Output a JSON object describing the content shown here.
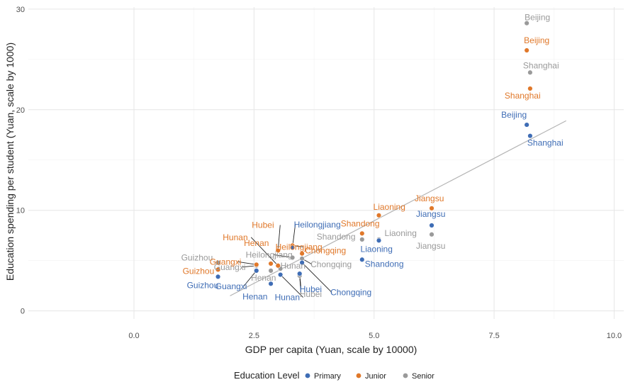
{
  "chart_data": {
    "type": "scatter",
    "title": "",
    "xlabel": "GDP per capita (Yuan, scale by 10000)",
    "ylabel": "Education spending per student (Yuan, scale by 1000)",
    "xlim": [
      -2.2,
      10.2
    ],
    "ylim": [
      -0.8,
      30.2
    ],
    "x_ticks": [
      "0.0",
      "2.5",
      "5.0",
      "7.5",
      "10.0"
    ],
    "x_tick_values": [
      0,
      2.5,
      5,
      7.5,
      10
    ],
    "y_ticks": [
      "0",
      "10",
      "20",
      "30"
    ],
    "y_tick_values": [
      0,
      10,
      20,
      30
    ],
    "grid": true,
    "legend": {
      "title": "Education Level",
      "position": "bottom",
      "items": [
        {
          "label": "Primary",
          "color": "#3f6db5"
        },
        {
          "label": "Junior",
          "color": "#e0782a"
        },
        {
          "label": "Senior",
          "color": "#9a9a9a"
        }
      ]
    },
    "trend_line": {
      "x": [
        2.0,
        9.0
      ],
      "y": [
        1.5,
        18.9
      ],
      "color": "#b3b3b3"
    },
    "series": [
      {
        "name": "Primary",
        "color": "#3f6db5",
        "points": [
          {
            "label": "Beijing",
            "x": 8.18,
            "y": 18.5
          },
          {
            "label": "Shanghai",
            "x": 8.25,
            "y": 17.4
          },
          {
            "label": "Jiangsu",
            "x": 6.2,
            "y": 8.5
          },
          {
            "label": "Liaoning",
            "x": 5.1,
            "y": 7.0
          },
          {
            "label": "Shandong",
            "x": 4.75,
            "y": 5.1
          },
          {
            "label": "Heilongjiang",
            "x": 3.3,
            "y": 6.3
          },
          {
            "label": "Chongqing",
            "x": 3.5,
            "y": 4.8
          },
          {
            "label": "Hubei",
            "x": 3.45,
            "y": 3.7
          },
          {
            "label": "Hunan",
            "x": 3.05,
            "y": 3.6
          },
          {
            "label": "Henan",
            "x": 2.85,
            "y": 2.7
          },
          {
            "label": "Guangxi",
            "x": 2.55,
            "y": 4.0
          },
          {
            "label": "Guizhou",
            "x": 1.75,
            "y": 3.4
          }
        ]
      },
      {
        "name": "Junior",
        "color": "#e0782a",
        "points": [
          {
            "label": "Beijing",
            "x": 8.18,
            "y": 25.9
          },
          {
            "label": "Shanghai",
            "x": 8.25,
            "y": 22.1
          },
          {
            "label": "Jiangsu",
            "x": 6.2,
            "y": 10.2
          },
          {
            "label": "Liaoning",
            "x": 5.1,
            "y": 9.5
          },
          {
            "label": "Shandong",
            "x": 4.75,
            "y": 7.7
          },
          {
            "label": "Heilongjiang",
            "x": 3.3,
            "y": 6.5
          },
          {
            "label": "Chongqing",
            "x": 3.5,
            "y": 5.7
          },
          {
            "label": "Hubei",
            "x": 3.0,
            "y": 6.0
          },
          {
            "label": "Hunan",
            "x": 3.0,
            "y": 4.5
          },
          {
            "label": "Henan",
            "x": 2.85,
            "y": 4.7
          },
          {
            "label": "Guangxi",
            "x": 2.55,
            "y": 4.6
          },
          {
            "label": "Guizhou",
            "x": 1.75,
            "y": 4.1
          }
        ]
      },
      {
        "name": "Senior",
        "color": "#9a9a9a",
        "points": [
          {
            "label": "Beijing",
            "x": 8.18,
            "y": 28.6
          },
          {
            "label": "Shanghai",
            "x": 8.25,
            "y": 23.7
          },
          {
            "label": "Jiangsu",
            "x": 6.2,
            "y": 7.6
          },
          {
            "label": "Liaoning",
            "x": 5.1,
            "y": 7.1
          },
          {
            "label": "Shandong",
            "x": 4.75,
            "y": 7.1
          },
          {
            "label": "Heilongjiang",
            "x": 3.3,
            "y": 5.3
          },
          {
            "label": "Chongqing",
            "x": 3.5,
            "y": 5.2
          },
          {
            "label": "Hubei",
            "x": 3.45,
            "y": 3.5
          },
          {
            "label": "Hunan",
            "x": 3.05,
            "y": 4.2
          },
          {
            "label": "Henan",
            "x": 2.85,
            "y": 4.0
          },
          {
            "label": "Guangxi",
            "x": 2.55,
            "y": 4.5
          },
          {
            "label": "Guizhou",
            "x": 1.75,
            "y": 4.8
          }
        ]
      }
    ]
  }
}
